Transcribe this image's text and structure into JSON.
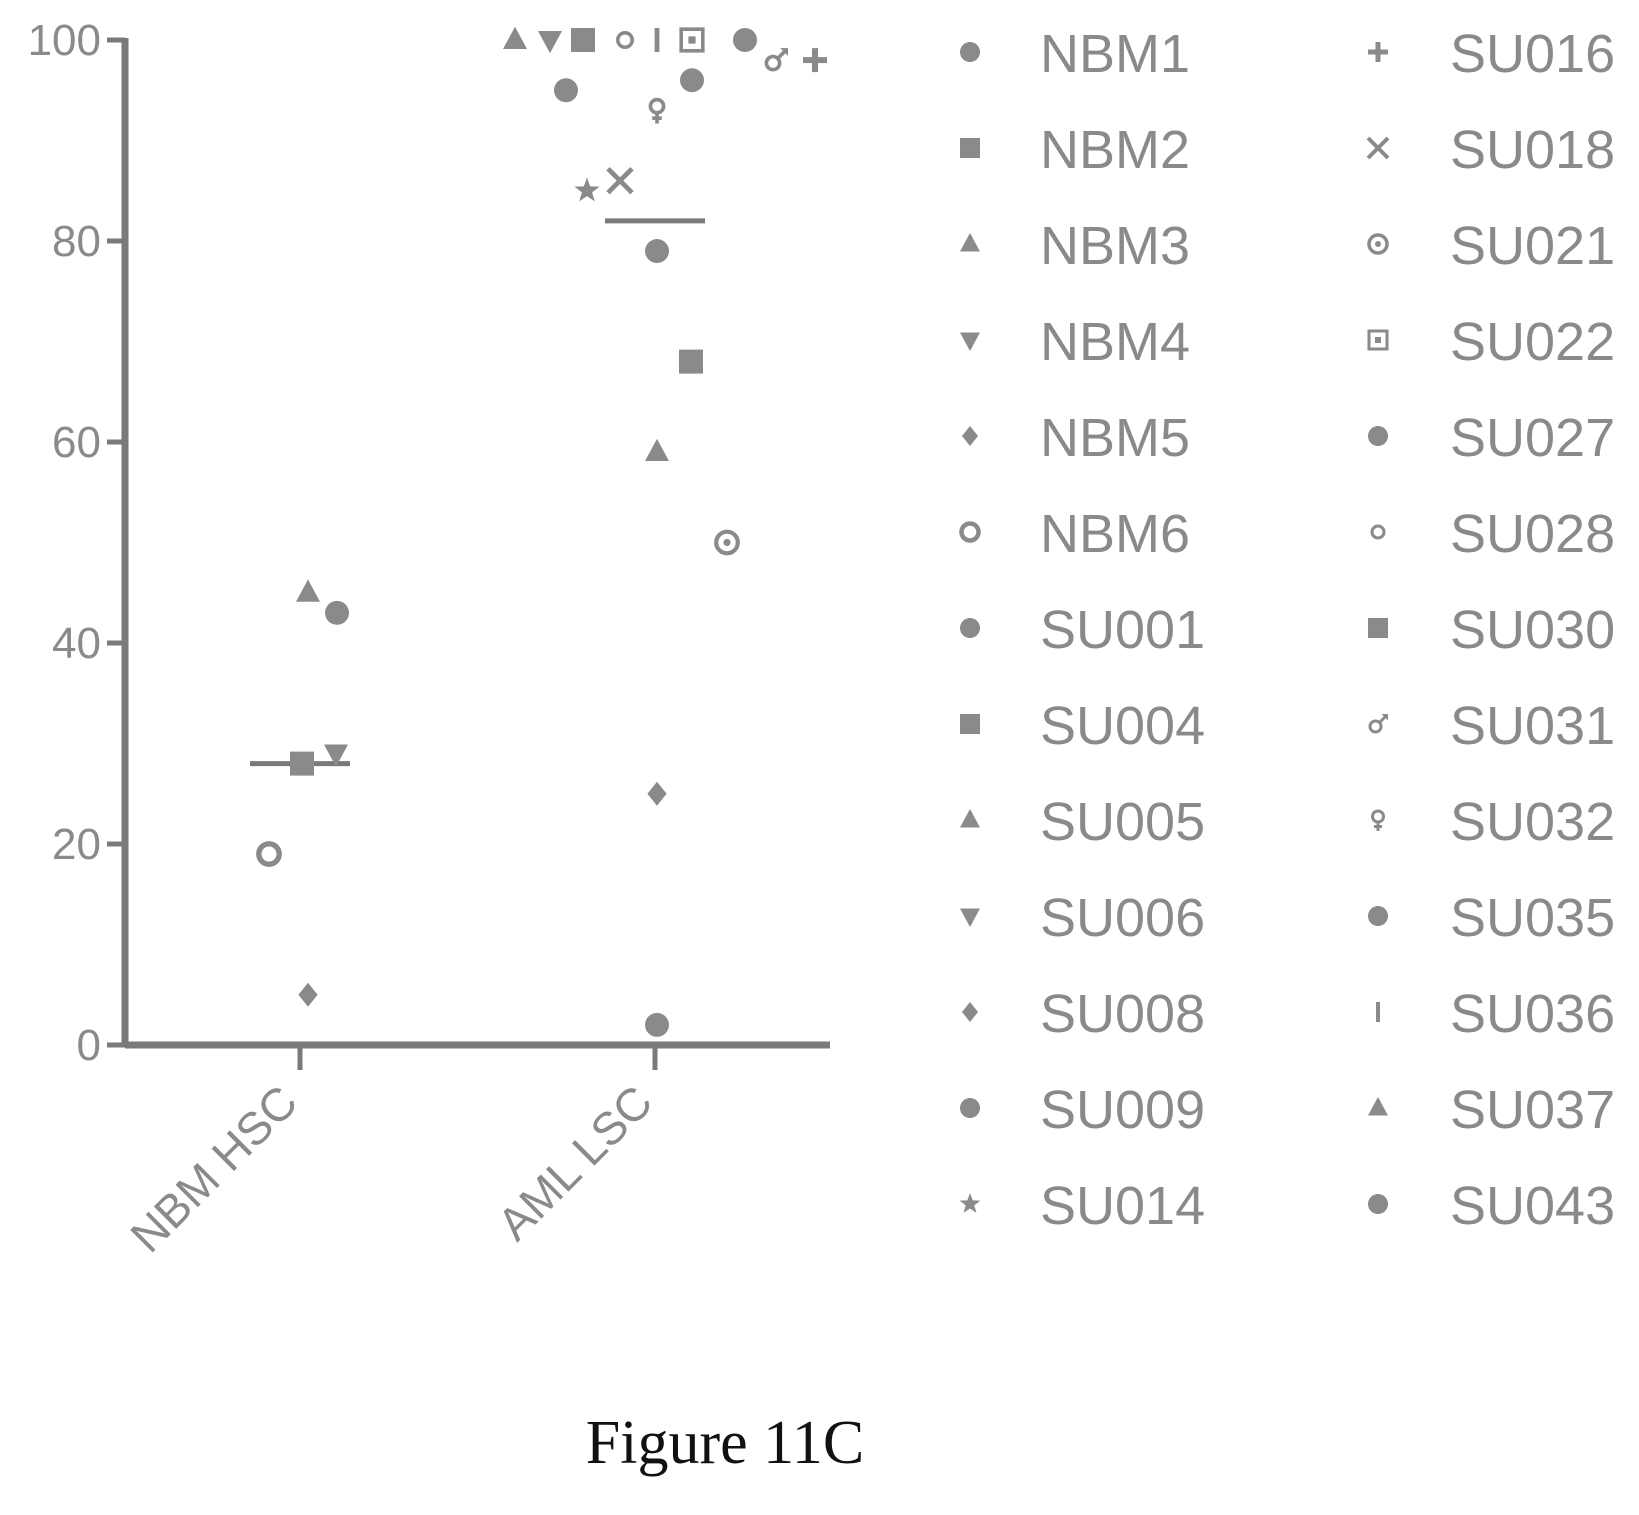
{
  "chart_data": {
    "type": "scatter",
    "title": "",
    "xlabel": "",
    "ylabel": "",
    "categories": [
      "NBM HSC",
      "AML LSC"
    ],
    "ylim": [
      0,
      100
    ],
    "yticks": [
      0,
      20,
      40,
      60,
      80,
      100
    ],
    "grid": false,
    "legend_position": "right",
    "marker_color": "#8a8a8a",
    "median_lines": [
      {
        "category": "NBM HSC",
        "value": 28
      },
      {
        "category": "AML LSC",
        "value": 82
      }
    ],
    "series": [
      {
        "name": "NBM1",
        "marker": "circle",
        "category": "NBM HSC",
        "value": 43
      },
      {
        "name": "NBM2",
        "marker": "square",
        "category": "NBM HSC",
        "value": 28
      },
      {
        "name": "NBM3",
        "marker": "triangle-up",
        "category": "NBM HSC",
        "value": 45
      },
      {
        "name": "NBM4",
        "marker": "triangle-down",
        "category": "NBM HSC",
        "value": 29
      },
      {
        "name": "NBM5",
        "marker": "diamond",
        "category": "NBM HSC",
        "value": 5
      },
      {
        "name": "NBM6",
        "marker": "circle-open",
        "category": "NBM HSC",
        "value": 19
      },
      {
        "name": "SU001",
        "marker": "circle",
        "category": "AML LSC",
        "value": 2
      },
      {
        "name": "SU004",
        "marker": "square",
        "category": "AML LSC",
        "value": 68
      },
      {
        "name": "SU005",
        "marker": "triangle-up",
        "category": "AML LSC",
        "value": 59
      },
      {
        "name": "SU006",
        "marker": "triangle-down",
        "category": "AML LSC",
        "value": 100
      },
      {
        "name": "SU008",
        "marker": "diamond",
        "category": "AML LSC",
        "value": 25
      },
      {
        "name": "SU009",
        "marker": "circle",
        "category": "AML LSC",
        "value": 95
      },
      {
        "name": "SU014",
        "marker": "star",
        "category": "AML LSC",
        "value": 85
      },
      {
        "name": "SU016",
        "marker": "plus",
        "category": "AML LSC",
        "value": 98
      },
      {
        "name": "SU018",
        "marker": "cross",
        "category": "AML LSC",
        "value": 86
      },
      {
        "name": "SU021",
        "marker": "circle-dot",
        "category": "AML LSC",
        "value": 50
      },
      {
        "name": "SU022",
        "marker": "square-dot",
        "category": "AML LSC",
        "value": 100
      },
      {
        "name": "SU027",
        "marker": "circle",
        "category": "AML LSC",
        "value": 100
      },
      {
        "name": "SU028",
        "marker": "circle-small-open",
        "category": "AML LSC",
        "value": 100
      },
      {
        "name": "SU030",
        "marker": "square",
        "category": "AML LSC",
        "value": 100
      },
      {
        "name": "SU031",
        "marker": "male",
        "category": "AML LSC",
        "value": 98
      },
      {
        "name": "SU032",
        "marker": "female",
        "category": "AML LSC",
        "value": 93
      },
      {
        "name": "SU035",
        "marker": "circle",
        "category": "AML LSC",
        "value": 96
      },
      {
        "name": "SU036",
        "marker": "bar",
        "category": "AML LSC",
        "value": 100
      },
      {
        "name": "SU037",
        "marker": "triangle-up",
        "category": "AML LSC",
        "value": 100
      },
      {
        "name": "SU043",
        "marker": "circle",
        "category": "AML LSC",
        "value": 79
      }
    ]
  },
  "caption": "Figure 11C"
}
